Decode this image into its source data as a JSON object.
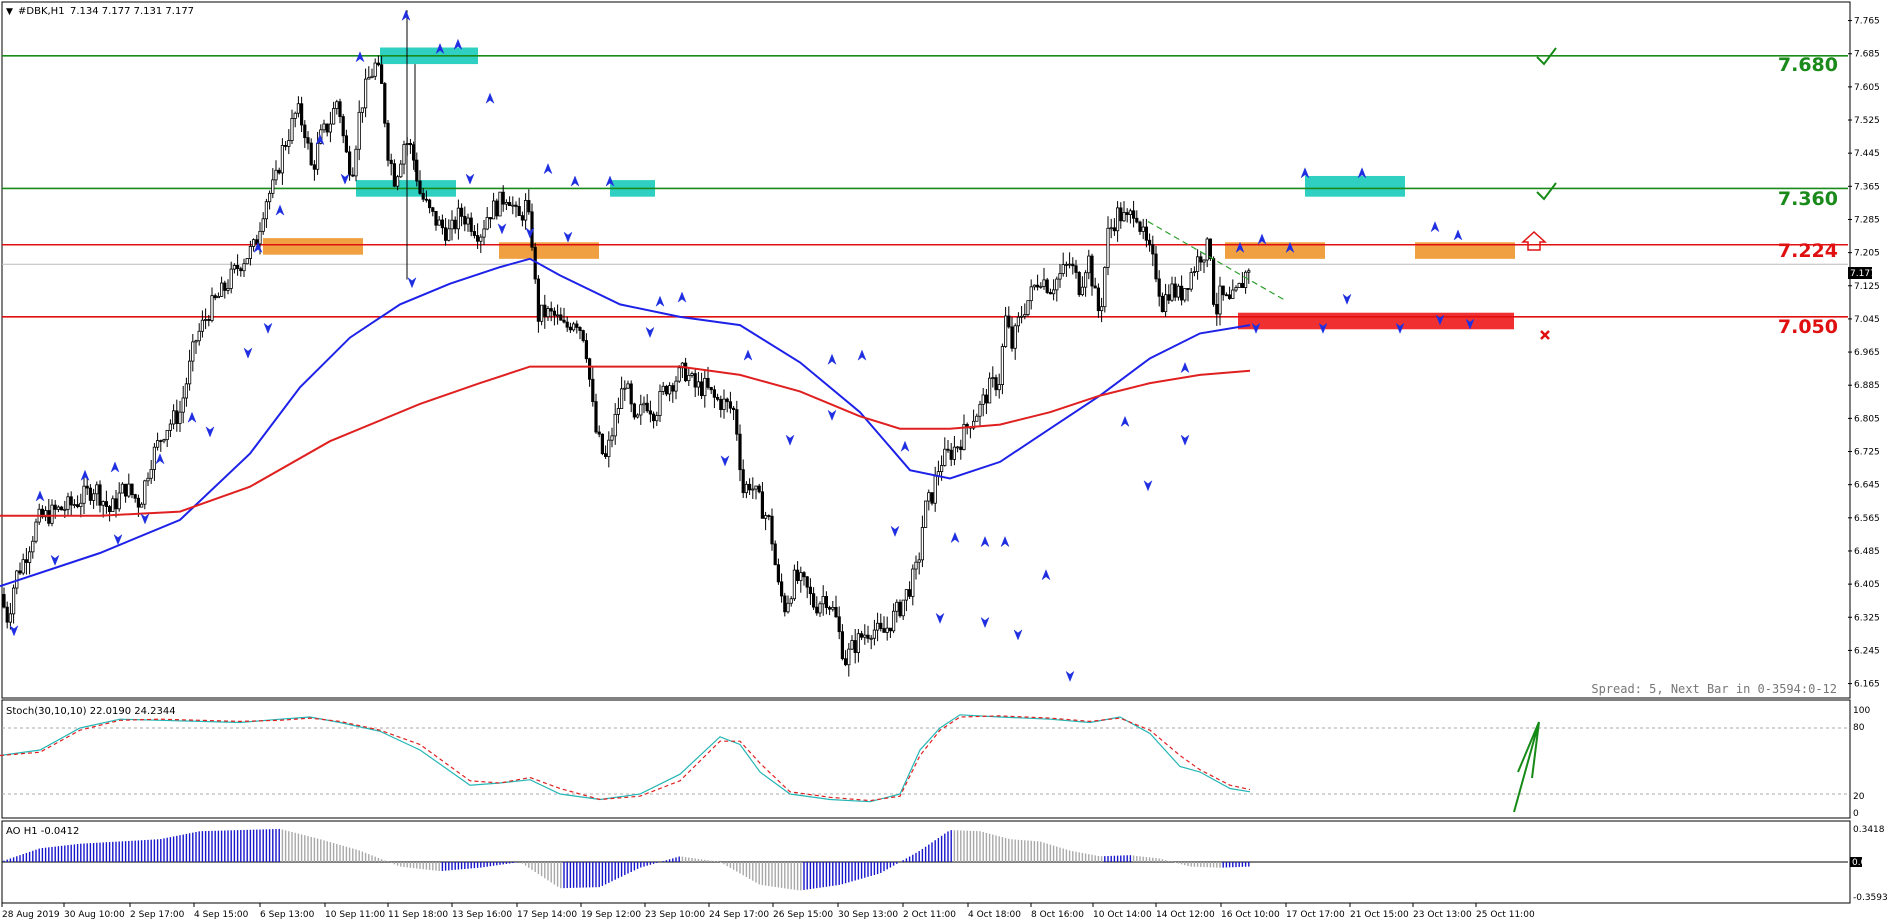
{
  "header": {
    "collapse_glyph": "▼",
    "symbol": "#DBK,H1",
    "ohlc": "7.134 7.177 7.131 7.177"
  },
  "price_tags": {
    "level_7680": "7.680",
    "level_7360": "7.360",
    "level_7224": "7.224",
    "level_7050": "7.050",
    "current": "7.177"
  },
  "status": {
    "spread_text": "Spread: 5,  Next Bar in 0-3594:0-12"
  },
  "stoch": {
    "label": "Stoch(30,10,10) 22.0190 24.2344",
    "ticks": [
      "100",
      "80",
      "20",
      "0"
    ]
  },
  "ao": {
    "label": "AO H1  -0.0412",
    "ticks": [
      "0.3418",
      "0.00",
      "-0.3593"
    ]
  },
  "chart_data": [
    {
      "type": "candlestick",
      "symbol": "#DBK",
      "timeframe": "H1",
      "ylim": [
        6.135,
        7.805
      ],
      "y_ticks": [
        "7.765",
        "7.685",
        "7.605",
        "7.525",
        "7.445",
        "7.365",
        "7.285",
        "7.205",
        "7.125",
        "7.045",
        "6.965",
        "6.885",
        "6.805",
        "6.725",
        "6.645",
        "6.565",
        "6.485",
        "6.405",
        "6.325",
        "6.245",
        "6.165"
      ],
      "x_tick_labels": [
        "28 Aug 2019",
        "30 Aug 10:00",
        "2 Sep 17:00",
        "4 Sep 15:00",
        "6 Sep 13:00",
        "10 Sep 11:00",
        "11 Sep 18:00",
        "13 Sep 16:00",
        "17 Sep 14:00",
        "19 Sep 12:00",
        "23 Sep 10:00",
        "24 Sep 17:00",
        "26 Sep 15:00",
        "30 Sep 13:00",
        "2 Oct 11:00",
        "4 Oct 18:00",
        "8 Oct 16:00",
        "10 Oct 14:00",
        "14 Oct 12:00",
        "16 Oct 10:00",
        "17 Oct 17:00",
        "21 Oct 15:00",
        "23 Oct 13:00",
        "25 Oct 11:00"
      ],
      "close_path": [
        [
          0,
          6.38
        ],
        [
          8,
          6.32
        ],
        [
          15,
          6.42
        ],
        [
          25,
          6.47
        ],
        [
          38,
          6.56
        ],
        [
          55,
          6.58
        ],
        [
          75,
          6.6
        ],
        [
          95,
          6.64
        ],
        [
          110,
          6.58
        ],
        [
          125,
          6.64
        ],
        [
          140,
          6.6
        ],
        [
          150,
          6.7
        ],
        [
          165,
          6.78
        ],
        [
          180,
          6.82
        ],
        [
          195,
          6.99
        ],
        [
          210,
          7.07
        ],
        [
          225,
          7.12
        ],
        [
          240,
          7.18
        ],
        [
          255,
          7.22
        ],
        [
          265,
          7.33
        ],
        [
          275,
          7.37
        ],
        [
          282,
          7.45
        ],
        [
          290,
          7.5
        ],
        [
          297,
          7.55
        ],
        [
          305,
          7.5
        ],
        [
          312,
          7.4
        ],
        [
          320,
          7.48
        ],
        [
          330,
          7.52
        ],
        [
          338,
          7.58
        ],
        [
          345,
          7.45
        ],
        [
          352,
          7.4
        ],
        [
          360,
          7.55
        ],
        [
          368,
          7.62
        ],
        [
          376,
          7.66
        ],
        [
          382,
          7.6
        ],
        [
          388,
          7.45
        ],
        [
          395,
          7.38
        ],
        [
          405,
          7.48
        ],
        [
          412,
          7.45
        ],
        [
          420,
          7.35
        ],
        [
          430,
          7.3
        ],
        [
          440,
          7.27
        ],
        [
          450,
          7.25
        ],
        [
          460,
          7.3
        ],
        [
          470,
          7.28
        ],
        [
          480,
          7.25
        ],
        [
          488,
          7.3
        ],
        [
          498,
          7.32
        ],
        [
          508,
          7.35
        ],
        [
          518,
          7.28
        ],
        [
          526,
          7.32
        ],
        [
          533,
          7.22
        ],
        [
          537,
          7.05
        ],
        [
          545,
          7.06
        ],
        [
          555,
          7.05
        ],
        [
          565,
          7.02
        ],
        [
          575,
          7.05
        ],
        [
          585,
          7.0
        ],
        [
          595,
          6.78
        ],
        [
          605,
          6.7
        ],
        [
          615,
          6.8
        ],
        [
          625,
          6.9
        ],
        [
          635,
          6.78
        ],
        [
          645,
          6.85
        ],
        [
          655,
          6.82
        ],
        [
          665,
          6.88
        ],
        [
          675,
          6.9
        ],
        [
          685,
          6.92
        ],
        [
          695,
          6.88
        ],
        [
          705,
          6.88
        ],
        [
          715,
          6.85
        ],
        [
          725,
          6.84
        ],
        [
          735,
          6.82
        ],
        [
          743,
          6.63
        ],
        [
          750,
          6.65
        ],
        [
          760,
          6.6
        ],
        [
          770,
          6.55
        ],
        [
          778,
          6.4
        ],
        [
          785,
          6.35
        ],
        [
          795,
          6.42
        ],
        [
          805,
          6.4
        ],
        [
          815,
          6.35
        ],
        [
          825,
          6.38
        ],
        [
          835,
          6.33
        ],
        [
          845,
          6.22
        ],
        [
          852,
          6.25
        ],
        [
          862,
          6.28
        ],
        [
          872,
          6.3
        ],
        [
          882,
          6.28
        ],
        [
          892,
          6.32
        ],
        [
          900,
          6.35
        ],
        [
          910,
          6.4
        ],
        [
          918,
          6.45
        ],
        [
          924,
          6.58
        ],
        [
          932,
          6.62
        ],
        [
          940,
          6.7
        ],
        [
          950,
          6.72
        ],
        [
          960,
          6.75
        ],
        [
          970,
          6.8
        ],
        [
          980,
          6.83
        ],
        [
          990,
          6.88
        ],
        [
          1000,
          6.9
        ],
        [
          1005,
          7.05
        ],
        [
          1012,
          6.98
        ],
        [
          1020,
          7.05
        ],
        [
          1030,
          7.1
        ],
        [
          1040,
          7.15
        ],
        [
          1050,
          7.12
        ],
        [
          1060,
          7.15
        ],
        [
          1070,
          7.18
        ],
        [
          1080,
          7.12
        ],
        [
          1088,
          7.2
        ],
        [
          1095,
          7.1
        ],
        [
          1100,
          7.05
        ],
        [
          1108,
          7.25
        ],
        [
          1118,
          7.3
        ],
        [
          1128,
          7.28
        ],
        [
          1135,
          7.32
        ],
        [
          1142,
          7.25
        ],
        [
          1150,
          7.2
        ],
        [
          1157,
          7.15
        ],
        [
          1162,
          7.08
        ],
        [
          1170,
          7.12
        ],
        [
          1180,
          7.1
        ],
        [
          1190,
          7.15
        ],
        [
          1200,
          7.2
        ],
        [
          1210,
          7.22
        ],
        [
          1215,
          7.05
        ],
        [
          1220,
          7.1
        ],
        [
          1230,
          7.08
        ],
        [
          1240,
          7.12
        ],
        [
          1250,
          7.18
        ]
      ],
      "sma_blue": [
        [
          0,
          6.4
        ],
        [
          100,
          6.48
        ],
        [
          180,
          6.56
        ],
        [
          250,
          6.72
        ],
        [
          300,
          6.88
        ],
        [
          350,
          7.0
        ],
        [
          400,
          7.08
        ],
        [
          450,
          7.13
        ],
        [
          500,
          7.17
        ],
        [
          530,
          7.19
        ],
        [
          560,
          7.15
        ],
        [
          620,
          7.08
        ],
        [
          680,
          7.05
        ],
        [
          740,
          7.03
        ],
        [
          800,
          6.94
        ],
        [
          860,
          6.82
        ],
        [
          910,
          6.68
        ],
        [
          950,
          6.66
        ],
        [
          1000,
          6.7
        ],
        [
          1050,
          6.78
        ],
        [
          1100,
          6.86
        ],
        [
          1150,
          6.95
        ],
        [
          1200,
          7.01
        ],
        [
          1250,
          7.03
        ]
      ],
      "sma_red": [
        [
          0,
          6.57
        ],
        [
          100,
          6.57
        ],
        [
          180,
          6.58
        ],
        [
          250,
          6.64
        ],
        [
          330,
          6.75
        ],
        [
          420,
          6.84
        ],
        [
          480,
          6.89
        ],
        [
          530,
          6.93
        ],
        [
          600,
          6.93
        ],
        [
          680,
          6.93
        ],
        [
          740,
          6.91
        ],
        [
          800,
          6.87
        ],
        [
          860,
          6.81
        ],
        [
          900,
          6.78
        ],
        [
          950,
          6.78
        ],
        [
          1000,
          6.79
        ],
        [
          1050,
          6.82
        ],
        [
          1100,
          6.86
        ],
        [
          1150,
          6.89
        ],
        [
          1200,
          6.91
        ],
        [
          1250,
          6.92
        ]
      ],
      "levels": [
        {
          "value": 7.68,
          "color": "#1a8a1a",
          "label": "7.680",
          "mark": "check"
        },
        {
          "value": 7.36,
          "color": "#1a8a1a",
          "label": "7.360",
          "mark": "check"
        },
        {
          "value": 7.224,
          "color": "#e01010",
          "label": "7.224",
          "mark": "arrow-up"
        },
        {
          "value": 7.05,
          "color": "#e01010",
          "label": "7.050",
          "mark": "cross"
        }
      ],
      "trendline": {
        "from": [
          1148,
          7.28
        ],
        "to": [
          1285,
          7.09
        ]
      }
    },
    {
      "type": "line",
      "indicator": "Stoch(30,10,10)",
      "values": [
        22.019,
        24.2344
      ],
      "ylim": [
        0,
        100
      ],
      "main": [
        [
          0,
          55
        ],
        [
          40,
          60
        ],
        [
          80,
          80
        ],
        [
          120,
          88
        ],
        [
          160,
          87
        ],
        [
          200,
          86
        ],
        [
          240,
          85
        ],
        [
          280,
          88
        ],
        [
          310,
          90
        ],
        [
          340,
          85
        ],
        [
          380,
          77
        ],
        [
          420,
          60
        ],
        [
          470,
          28
        ],
        [
          500,
          30
        ],
        [
          530,
          33
        ],
        [
          560,
          20
        ],
        [
          600,
          15
        ],
        [
          640,
          20
        ],
        [
          680,
          38
        ],
        [
          720,
          72
        ],
        [
          740,
          65
        ],
        [
          760,
          40
        ],
        [
          790,
          20
        ],
        [
          830,
          15
        ],
        [
          870,
          13
        ],
        [
          900,
          20
        ],
        [
          920,
          60
        ],
        [
          940,
          80
        ],
        [
          960,
          92
        ],
        [
          1000,
          90
        ],
        [
          1050,
          88
        ],
        [
          1090,
          85
        ],
        [
          1120,
          90
        ],
        [
          1150,
          75
        ],
        [
          1180,
          45
        ],
        [
          1200,
          40
        ],
        [
          1230,
          25
        ],
        [
          1250,
          22
        ]
      ],
      "signal": [
        [
          0,
          55
        ],
        [
          40,
          58
        ],
        [
          80,
          78
        ],
        [
          120,
          87
        ],
        [
          160,
          88
        ],
        [
          200,
          87
        ],
        [
          240,
          86
        ],
        [
          280,
          87
        ],
        [
          310,
          89
        ],
        [
          340,
          86
        ],
        [
          380,
          78
        ],
        [
          420,
          65
        ],
        [
          470,
          32
        ],
        [
          500,
          30
        ],
        [
          530,
          35
        ],
        [
          560,
          25
        ],
        [
          600,
          15
        ],
        [
          640,
          18
        ],
        [
          680,
          32
        ],
        [
          720,
          68
        ],
        [
          740,
          68
        ],
        [
          760,
          48
        ],
        [
          790,
          22
        ],
        [
          830,
          17
        ],
        [
          870,
          14
        ],
        [
          900,
          18
        ],
        [
          920,
          55
        ],
        [
          940,
          78
        ],
        [
          960,
          90
        ],
        [
          1000,
          91
        ],
        [
          1050,
          89
        ],
        [
          1090,
          86
        ],
        [
          1120,
          89
        ],
        [
          1150,
          78
        ],
        [
          1180,
          55
        ],
        [
          1200,
          42
        ],
        [
          1230,
          28
        ],
        [
          1250,
          24
        ]
      ]
    },
    {
      "type": "bar",
      "indicator": "AO",
      "current": -0.0412,
      "ylim": [
        -0.3593,
        0.3418
      ],
      "values": [
        [
          0,
          0
        ],
        [
          40,
          0.12
        ],
        [
          80,
          0.16
        ],
        [
          120,
          0.18
        ],
        [
          160,
          0.2
        ],
        [
          200,
          0.27
        ],
        [
          240,
          0.28
        ],
        [
          280,
          0.29
        ],
        [
          320,
          0.2
        ],
        [
          360,
          0.1
        ],
        [
          400,
          -0.04
        ],
        [
          440,
          -0.08
        ],
        [
          480,
          -0.05
        ],
        [
          520,
          0.0
        ],
        [
          560,
          -0.23
        ],
        [
          600,
          -0.22
        ],
        [
          640,
          -0.05
        ],
        [
          680,
          0.05
        ],
        [
          720,
          0.0
        ],
        [
          760,
          -0.2
        ],
        [
          800,
          -0.25
        ],
        [
          840,
          -0.2
        ],
        [
          880,
          -0.1
        ],
        [
          920,
          0.1
        ],
        [
          950,
          0.28
        ],
        [
          980,
          0.27
        ],
        [
          1010,
          0.2
        ],
        [
          1040,
          0.18
        ],
        [
          1070,
          0.1
        ],
        [
          1100,
          0.05
        ],
        [
          1130,
          0.06
        ],
        [
          1160,
          0.03
        ],
        [
          1190,
          -0.04
        ],
        [
          1220,
          -0.05
        ],
        [
          1250,
          -0.04
        ]
      ]
    }
  ],
  "colors": {
    "level_green": "#1a8a1a",
    "level_red": "#e01010",
    "sma_blue": "#1e22e8",
    "sma_red": "#e02020",
    "zone_cyan": "#2fd0c2",
    "zone_orange": "#f0a040",
    "zone_red": "#f03030",
    "fractal": "#1e2ee0",
    "stoch_main": "#25b5b5",
    "stoch_signal": "#e02020",
    "ao_up": "#1515cc",
    "ao_down": "#a8a8a8",
    "annot_green": "#168a16"
  },
  "icons": {
    "check": "check-icon",
    "arrow_up": "outlined-up-arrow-icon",
    "cross": "red-x-icon"
  }
}
